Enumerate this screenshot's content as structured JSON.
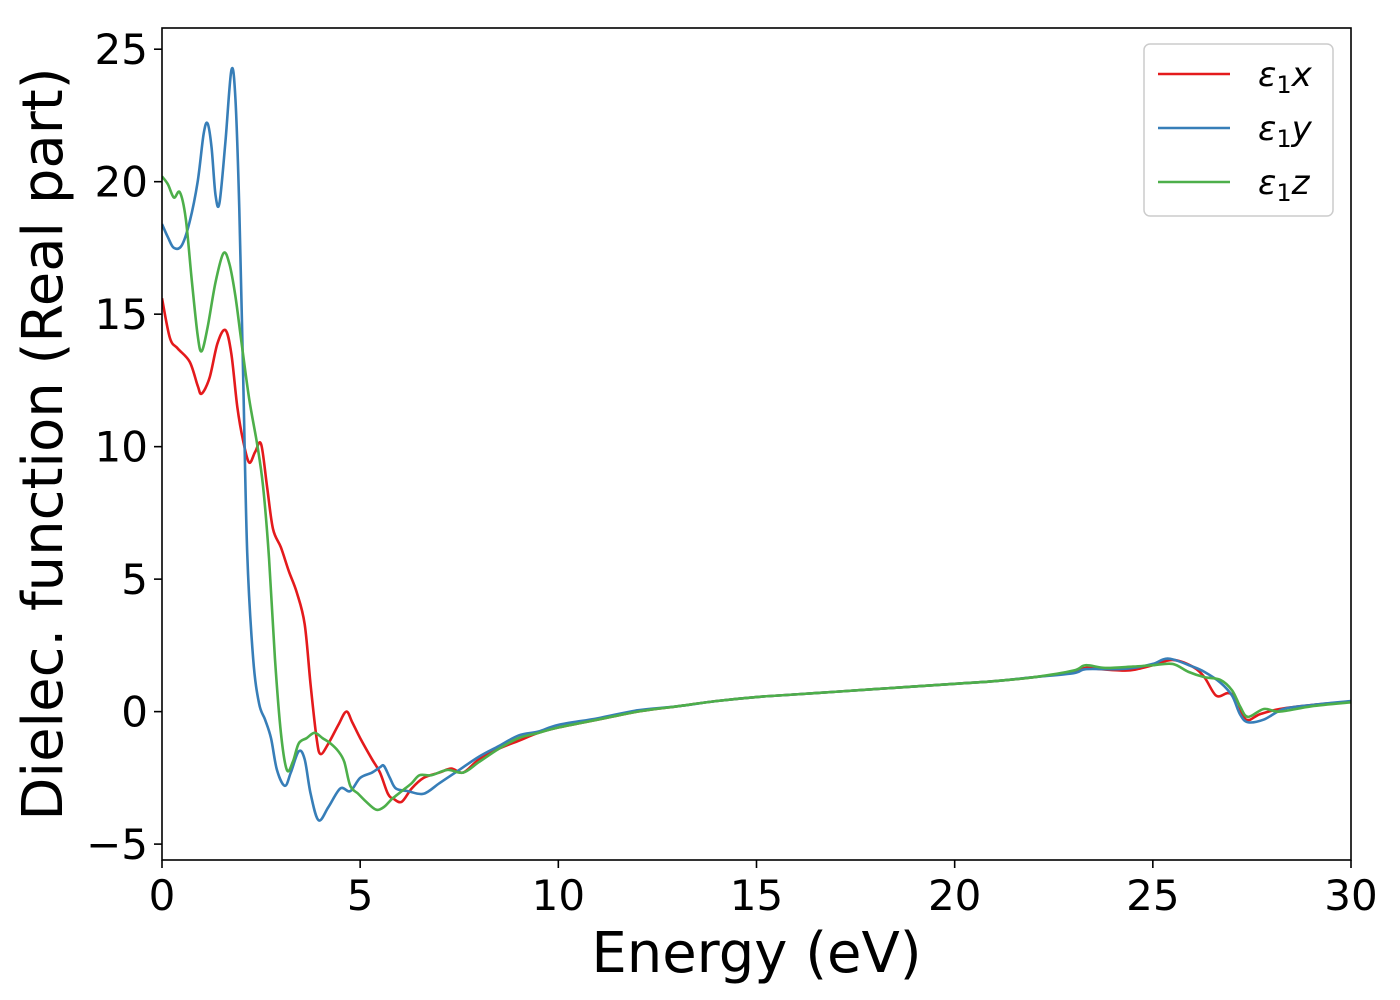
{
  "chart_data": {
    "type": "line",
    "title": "",
    "xlabel": "Energy (eV)",
    "ylabel": "Dielec. function (Real part)",
    "xlim": [
      0,
      30
    ],
    "ylim": [
      -5.6,
      25.8
    ],
    "xticks": [
      0,
      5,
      10,
      15,
      20,
      25,
      30
    ],
    "yticks": [
      -5,
      0,
      5,
      10,
      15,
      20,
      25
    ],
    "xtick_labels": [
      "0",
      "5",
      "10",
      "15",
      "20",
      "25",
      "30"
    ],
    "ytick_labels": [
      "−5",
      "0",
      "5",
      "10",
      "15",
      "20",
      "25"
    ],
    "grid": false,
    "legend_position": "top-right",
    "series": [
      {
        "name": "ε₁x",
        "legend_base": "ε",
        "legend_sub": "1",
        "legend_var": "x",
        "color": "#e41a1c",
        "points": [
          [
            0,
            15.6
          ],
          [
            0.2,
            14.1
          ],
          [
            0.4,
            13.7
          ],
          [
            0.7,
            13.2
          ],
          [
            0.9,
            12.3
          ],
          [
            1.0,
            12.0
          ],
          [
            1.2,
            12.6
          ],
          [
            1.4,
            13.9
          ],
          [
            1.6,
            14.4
          ],
          [
            1.75,
            13.5
          ],
          [
            1.9,
            11.5
          ],
          [
            2.05,
            10.2
          ],
          [
            2.2,
            9.4
          ],
          [
            2.35,
            9.8
          ],
          [
            2.5,
            10.1
          ],
          [
            2.65,
            8.5
          ],
          [
            2.8,
            6.9
          ],
          [
            3.0,
            6.2
          ],
          [
            3.2,
            5.3
          ],
          [
            3.4,
            4.5
          ],
          [
            3.6,
            3.3
          ],
          [
            3.75,
            1.0
          ],
          [
            3.9,
            -1.0
          ],
          [
            4.0,
            -1.6
          ],
          [
            4.2,
            -1.2
          ],
          [
            4.45,
            -0.5
          ],
          [
            4.65,
            0.0
          ],
          [
            4.8,
            -0.4
          ],
          [
            5.0,
            -1.0
          ],
          [
            5.3,
            -1.8
          ],
          [
            5.5,
            -2.3
          ],
          [
            5.7,
            -3.1
          ],
          [
            5.85,
            -3.3
          ],
          [
            6.05,
            -3.4
          ],
          [
            6.3,
            -2.9
          ],
          [
            6.6,
            -2.5
          ],
          [
            7.0,
            -2.3
          ],
          [
            7.3,
            -2.15
          ],
          [
            7.6,
            -2.3
          ],
          [
            8.0,
            -1.8
          ],
          [
            8.5,
            -1.4
          ],
          [
            9.0,
            -1.1
          ],
          [
            9.5,
            -0.8
          ],
          [
            10,
            -0.6
          ],
          [
            11,
            -0.3
          ],
          [
            12,
            0.0
          ],
          [
            13,
            0.2
          ],
          [
            14,
            0.4
          ],
          [
            15,
            0.55
          ],
          [
            16,
            0.65
          ],
          [
            17,
            0.75
          ],
          [
            18,
            0.85
          ],
          [
            19,
            0.95
          ],
          [
            20,
            1.05
          ],
          [
            21,
            1.15
          ],
          [
            22,
            1.3
          ],
          [
            23,
            1.5
          ],
          [
            23.3,
            1.65
          ],
          [
            23.7,
            1.6
          ],
          [
            24.3,
            1.55
          ],
          [
            24.6,
            1.6
          ],
          [
            25.0,
            1.75
          ],
          [
            25.5,
            1.95
          ],
          [
            26.0,
            1.7
          ],
          [
            26.3,
            1.3
          ],
          [
            26.6,
            0.6
          ],
          [
            26.9,
            0.7
          ],
          [
            27.1,
            0.5
          ],
          [
            27.35,
            -0.3
          ],
          [
            27.7,
            -0.1
          ],
          [
            28.2,
            0.1
          ],
          [
            29,
            0.25
          ],
          [
            30,
            0.38
          ]
        ]
      },
      {
        "name": "ε₁y",
        "legend_base": "ε",
        "legend_sub": "1",
        "legend_var": "y",
        "color": "#377eb8",
        "points": [
          [
            0,
            18.4
          ],
          [
            0.15,
            17.9
          ],
          [
            0.3,
            17.5
          ],
          [
            0.5,
            17.6
          ],
          [
            0.7,
            18.5
          ],
          [
            0.9,
            20.0
          ],
          [
            1.05,
            21.8
          ],
          [
            1.15,
            22.2
          ],
          [
            1.25,
            21.3
          ],
          [
            1.35,
            19.5
          ],
          [
            1.45,
            19.2
          ],
          [
            1.6,
            21.5
          ],
          [
            1.75,
            24.2
          ],
          [
            1.85,
            23.2
          ],
          [
            1.95,
            19.0
          ],
          [
            2.05,
            12.5
          ],
          [
            2.15,
            6.0
          ],
          [
            2.3,
            2.0
          ],
          [
            2.45,
            0.3
          ],
          [
            2.6,
            -0.3
          ],
          [
            2.75,
            -1.0
          ],
          [
            2.9,
            -2.2
          ],
          [
            3.1,
            -2.8
          ],
          [
            3.25,
            -2.3
          ],
          [
            3.45,
            -1.5
          ],
          [
            3.6,
            -1.8
          ],
          [
            3.75,
            -3.1
          ],
          [
            3.95,
            -4.1
          ],
          [
            4.2,
            -3.6
          ],
          [
            4.5,
            -2.9
          ],
          [
            4.75,
            -3.0
          ],
          [
            5.0,
            -2.5
          ],
          [
            5.3,
            -2.3
          ],
          [
            5.5,
            -2.1
          ],
          [
            5.6,
            -2.05
          ],
          [
            5.75,
            -2.5
          ],
          [
            5.9,
            -2.9
          ],
          [
            6.2,
            -3.0
          ],
          [
            6.6,
            -3.1
          ],
          [
            7.0,
            -2.7
          ],
          [
            7.4,
            -2.3
          ],
          [
            8.0,
            -1.7
          ],
          [
            8.5,
            -1.3
          ],
          [
            9.0,
            -0.9
          ],
          [
            9.5,
            -0.75
          ],
          [
            10,
            -0.5
          ],
          [
            11,
            -0.25
          ],
          [
            12,
            0.05
          ],
          [
            13,
            0.2
          ],
          [
            14,
            0.4
          ],
          [
            15,
            0.55
          ],
          [
            16,
            0.65
          ],
          [
            17,
            0.75
          ],
          [
            18,
            0.85
          ],
          [
            19,
            0.95
          ],
          [
            20,
            1.05
          ],
          [
            21,
            1.15
          ],
          [
            22,
            1.3
          ],
          [
            23,
            1.45
          ],
          [
            23.3,
            1.6
          ],
          [
            24.0,
            1.6
          ],
          [
            24.5,
            1.65
          ],
          [
            25.0,
            1.8
          ],
          [
            25.4,
            2.0
          ],
          [
            26.0,
            1.7
          ],
          [
            26.3,
            1.5
          ],
          [
            26.7,
            1.1
          ],
          [
            27.0,
            0.6
          ],
          [
            27.2,
            -0.1
          ],
          [
            27.4,
            -0.4
          ],
          [
            27.8,
            -0.3
          ],
          [
            28.3,
            0.1
          ],
          [
            29,
            0.25
          ],
          [
            30,
            0.4
          ]
        ]
      },
      {
        "name": "ε₁z",
        "legend_base": "ε",
        "legend_sub": "1",
        "legend_var": "z",
        "color": "#4daf4a",
        "points": [
          [
            0,
            20.2
          ],
          [
            0.15,
            19.9
          ],
          [
            0.3,
            19.4
          ],
          [
            0.45,
            19.6
          ],
          [
            0.6,
            18.6
          ],
          [
            0.75,
            16.3
          ],
          [
            0.9,
            14.2
          ],
          [
            1.0,
            13.6
          ],
          [
            1.15,
            14.5
          ],
          [
            1.35,
            16.2
          ],
          [
            1.55,
            17.3
          ],
          [
            1.7,
            16.9
          ],
          [
            1.85,
            15.7
          ],
          [
            2.0,
            14.0
          ],
          [
            2.2,
            11.8
          ],
          [
            2.4,
            10.1
          ],
          [
            2.55,
            8.5
          ],
          [
            2.7,
            5.8
          ],
          [
            2.85,
            2.0
          ],
          [
            3.0,
            -0.8
          ],
          [
            3.15,
            -2.2
          ],
          [
            3.3,
            -1.9
          ],
          [
            3.45,
            -1.2
          ],
          [
            3.65,
            -1.0
          ],
          [
            3.85,
            -0.8
          ],
          [
            4.05,
            -1.0
          ],
          [
            4.25,
            -1.2
          ],
          [
            4.45,
            -1.5
          ],
          [
            4.6,
            -1.9
          ],
          [
            4.75,
            -2.8
          ],
          [
            4.95,
            -3.1
          ],
          [
            5.15,
            -3.4
          ],
          [
            5.4,
            -3.7
          ],
          [
            5.6,
            -3.6
          ],
          [
            5.8,
            -3.3
          ],
          [
            6.05,
            -3.0
          ],
          [
            6.3,
            -2.7
          ],
          [
            6.5,
            -2.4
          ],
          [
            6.8,
            -2.4
          ],
          [
            7.2,
            -2.2
          ],
          [
            7.6,
            -2.3
          ],
          [
            8.0,
            -1.9
          ],
          [
            8.5,
            -1.4
          ],
          [
            9.0,
            -1.0
          ],
          [
            9.5,
            -0.8
          ],
          [
            10,
            -0.6
          ],
          [
            11,
            -0.3
          ],
          [
            12,
            0.0
          ],
          [
            13,
            0.2
          ],
          [
            14,
            0.4
          ],
          [
            15,
            0.55
          ],
          [
            16,
            0.65
          ],
          [
            17,
            0.75
          ],
          [
            18,
            0.85
          ],
          [
            19,
            0.95
          ],
          [
            20,
            1.05
          ],
          [
            21,
            1.15
          ],
          [
            22,
            1.3
          ],
          [
            23,
            1.55
          ],
          [
            23.3,
            1.75
          ],
          [
            23.8,
            1.65
          ],
          [
            24.5,
            1.7
          ],
          [
            25.0,
            1.75
          ],
          [
            25.5,
            1.8
          ],
          [
            25.9,
            1.5
          ],
          [
            26.3,
            1.3
          ],
          [
            26.7,
            1.2
          ],
          [
            27.0,
            0.8
          ],
          [
            27.2,
            0.2
          ],
          [
            27.4,
            -0.2
          ],
          [
            27.8,
            0.1
          ],
          [
            28.2,
            0.0
          ],
          [
            29,
            0.2
          ],
          [
            30,
            0.35
          ]
        ]
      }
    ]
  }
}
